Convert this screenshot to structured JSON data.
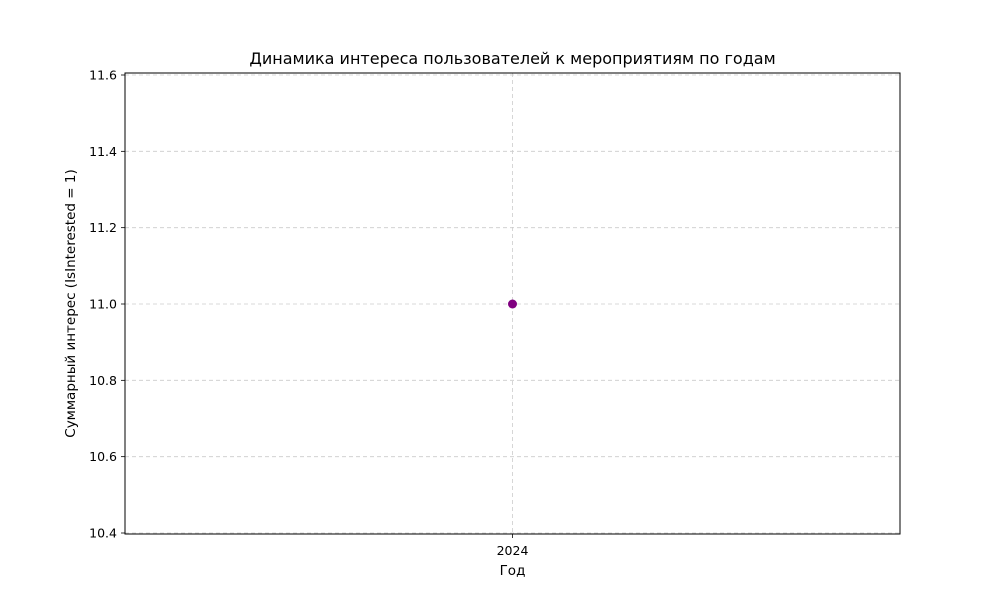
{
  "chart_data": {
    "type": "line",
    "title": "Динамика интереса пользователей к мероприятиям по годам",
    "xlabel": "Год",
    "ylabel": "Суммарный интерес (IsInterested = 1)",
    "categories": [
      "2024"
    ],
    "series": [
      {
        "values": [
          11.0
        ],
        "color": "#800080",
        "marker": "circle"
      }
    ],
    "ylim": [
      10.4,
      11.6
    ],
    "yticks": [
      10.4,
      10.6,
      10.8,
      11.0,
      11.2,
      11.4,
      11.6
    ],
    "ytick_labels": [
      "10.4",
      "10.6",
      "10.8",
      "11.0",
      "11.2",
      "11.4",
      "11.6"
    ],
    "grid": true,
    "grid_style": "dashed"
  }
}
